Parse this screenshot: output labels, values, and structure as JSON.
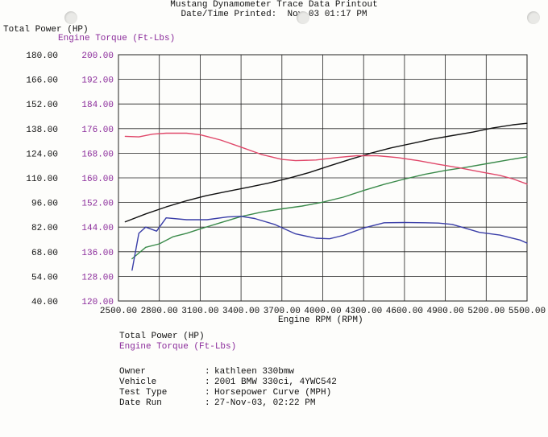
{
  "header": {
    "title": "Mustang Dynamometer Trace Data Printout",
    "printed_label": "Date/Time Printed:",
    "printed_value": "Nov-03 01:17 PM"
  },
  "info": {
    "rows": [
      {
        "key": "Owner",
        "value": "kathleen 330bmw"
      },
      {
        "key": "Vehicle",
        "value": "2001 BMW 330ci, 4YWC542"
      },
      {
        "key": "Test Type",
        "value": "Horsepower Curve (MPH)"
      },
      {
        "key": "Date Run",
        "value": "27-Nov-03, 02:22 PM"
      }
    ],
    "separator": ":"
  },
  "colors": {
    "power": "#111111",
    "power_gross": "#3a8a4a",
    "torque": "#e0486a",
    "torque_low": "#3a3ea8",
    "grid": "#222222",
    "purple_text": "#8a2a9a"
  },
  "chart_data": {
    "type": "line",
    "title": "Mustang Dynamometer Trace Data Printout",
    "xlabel": "Engine RPM (RPM)",
    "ylabel_left": "Total Power (HP)",
    "ylabel_right": "Engine Torque (Ft-Lbs)",
    "xlim": [
      2500,
      5500
    ],
    "ylim_power": [
      40,
      180
    ],
    "ylim_torque": [
      120,
      200
    ],
    "grid": true,
    "x_ticks": [
      "2500.00",
      "2800.00",
      "3100.00",
      "3400.00",
      "3700.00",
      "4000.00",
      "4300.00",
      "4600.00",
      "4900.00",
      "5200.00",
      "5500.00"
    ],
    "power_ticks": [
      "180.00",
      "166.00",
      "152.00",
      "138.00",
      "124.00",
      "110.00",
      "96.00",
      "82.00",
      "68.00",
      "54.00",
      "40.00"
    ],
    "torque_ticks": [
      "200.00",
      "192.00",
      "184.00",
      "176.00",
      "168.00",
      "160.00",
      "152.00",
      "144.00",
      "136.00",
      "128.00",
      "120.00"
    ],
    "legend": [
      "Total Power (HP)",
      "Engine Torque (Ft-Lbs)"
    ],
    "series": [
      {
        "axis": "power",
        "color": "#111111",
        "x": [
          2550,
          2700,
          2850,
          3000,
          3150,
          3300,
          3450,
          3600,
          3750,
          3900,
          4050,
          4200,
          4350,
          4500,
          4650,
          4800,
          4950,
          5100,
          5250,
          5400,
          5500
        ],
        "y": [
          85,
          89.5,
          93.5,
          97,
          100,
          102.3,
          104.6,
          107,
          109.8,
          113,
          116.8,
          120.5,
          124,
          127,
          129.5,
          132,
          134,
          136,
          138.4,
          140.2,
          141
        ]
      },
      {
        "axis": "power",
        "color": "#3a8a4a",
        "x": [
          2600,
          2700,
          2800,
          2900,
          3000,
          3100,
          3250,
          3400,
          3550,
          3700,
          3850,
          4000,
          4150,
          4300,
          4450,
          4600,
          4750,
          4900,
          5050,
          5200,
          5350,
          5500
        ],
        "y": [
          64,
          70.5,
          72.5,
          76.5,
          78.5,
          81,
          84.5,
          88,
          90.5,
          92.4,
          94,
          96.2,
          99,
          102.8,
          106.3,
          109.3,
          112,
          114.2,
          116,
          118,
          120,
          122
        ]
      },
      {
        "axis": "torque",
        "color": "#e0486a",
        "x": [
          2550,
          2650,
          2750,
          2850,
          3000,
          3100,
          3250,
          3400,
          3550,
          3700,
          3800,
          3950,
          4100,
          4250,
          4400,
          4550,
          4700,
          4850,
          5000,
          5150,
          5300,
          5400,
          5500
        ],
        "y": [
          173.5,
          173.3,
          174.2,
          174.5,
          174.5,
          174,
          172.3,
          170,
          167.6,
          166,
          165.6,
          165.8,
          166.6,
          167.2,
          167.2,
          166.6,
          165.6,
          164.4,
          163.3,
          162,
          160.8,
          159.6,
          158
        ]
      },
      {
        "axis": "torque",
        "color": "#3a3ea8",
        "x": [
          2600,
          2650,
          2700,
          2780,
          2850,
          3000,
          3150,
          3300,
          3400,
          3500,
          3650,
          3800,
          3950,
          4050,
          4150,
          4300,
          4450,
          4600,
          4750,
          4850,
          4950,
          5050,
          5150,
          5300,
          5450,
          5500
        ],
        "y": [
          130,
          142,
          144,
          142.7,
          147,
          146.4,
          146.4,
          147.3,
          147.5,
          146.8,
          144.8,
          141.8,
          140.4,
          140.2,
          141.3,
          143.7,
          145.4,
          145.5,
          145.4,
          145.3,
          144.9,
          143.6,
          142.3,
          141.4,
          139.8,
          138.8
        ]
      }
    ]
  }
}
